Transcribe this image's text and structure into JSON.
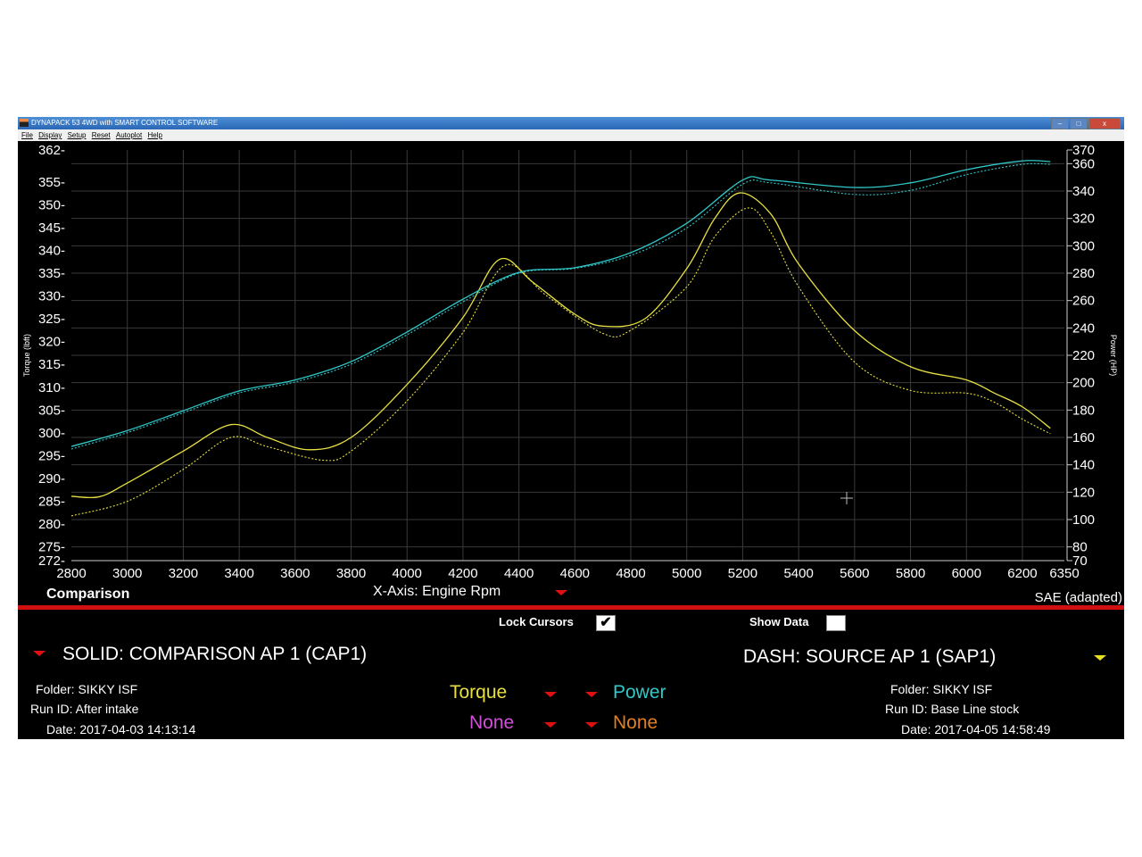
{
  "window": {
    "title": "DYNAPACK 53 4WD with SMART CONTROL SOFTWARE",
    "controls": [
      "–",
      "□",
      "x"
    ]
  },
  "menu": [
    "File",
    "Display",
    "Setup",
    "Reset",
    "Autoplot",
    "Help"
  ],
  "chart_data": {
    "type": "line",
    "xlabel": "X-Axis: Engine Rpm",
    "ylabel": "Torque (lbft)",
    "y2label": "Power (HP)",
    "xlim": [
      2800,
      6350
    ],
    "ylim": [
      272,
      362
    ],
    "y2lim": [
      70,
      370
    ],
    "x_ticks": [
      2800,
      3000,
      3200,
      3400,
      3600,
      3800,
      4000,
      4200,
      4400,
      4600,
      4800,
      5000,
      5200,
      5400,
      5600,
      5800,
      6000,
      6200,
      6350
    ],
    "y_ticks": [
      362,
      355,
      350,
      345,
      340,
      335,
      330,
      325,
      320,
      315,
      310,
      305,
      300,
      295,
      290,
      285,
      280,
      275,
      272
    ],
    "y2_ticks": [
      370,
      360,
      340,
      320,
      300,
      280,
      260,
      240,
      220,
      200,
      180,
      160,
      140,
      120,
      100,
      80,
      70
    ],
    "grid": true,
    "colors": {
      "torque": "#e8e040",
      "power": "#30c8c8"
    },
    "series": [
      {
        "name": "Torque",
        "style": "solid",
        "axis": "left",
        "x": [
          2800,
          2900,
          3000,
          3200,
          3370,
          3500,
          3650,
          3800,
          4000,
          4200,
          4330,
          4450,
          4600,
          4700,
          4850,
          5000,
          5100,
          5190,
          5300,
          5400,
          5600,
          5800,
          6000,
          6100,
          6200,
          6300
        ],
        "y": [
          286.1,
          286,
          289,
          296,
          301.8,
          299,
          296.3,
          299,
          310.6,
          325.3,
          338,
          333,
          326,
          323.4,
          325,
          336,
          347,
          352.6,
          348,
          337,
          322.4,
          314.5,
          311.6,
          308.7,
          305.7,
          301
        ]
      },
      {
        "name": "Torque",
        "style": "dash",
        "axis": "left",
        "x": [
          2800,
          3000,
          3200,
          3370,
          3500,
          3700,
          3800,
          4000,
          4200,
          4350,
          4500,
          4700,
          4800,
          5000,
          5100,
          5220,
          5300,
          5400,
          5600,
          5800,
          6000,
          6100,
          6200,
          6300
        ],
        "y": [
          281.8,
          285,
          292,
          299,
          297,
          294,
          296,
          307,
          322,
          336.7,
          330,
          321.8,
          322.5,
          332,
          343,
          349.3,
          344,
          332,
          315.5,
          309.3,
          308.7,
          306.7,
          303,
          299.8
        ]
      },
      {
        "name": "Power",
        "style": "solid",
        "axis": "right",
        "x": [
          2800,
          3000,
          3200,
          3400,
          3600,
          3800,
          4000,
          4200,
          4400,
          4600,
          4800,
          5000,
          5200,
          5300,
          5600,
          5800,
          6000,
          6200,
          6300
        ],
        "y": [
          153.4,
          165,
          179.5,
          194,
          202,
          215.4,
          237,
          261,
          280.6,
          284,
          295,
          316.5,
          348,
          348,
          342.6,
          346,
          355.6,
          362,
          361.5
        ]
      },
      {
        "name": "Power",
        "style": "dash",
        "axis": "right",
        "x": [
          2800,
          3000,
          3200,
          3400,
          3600,
          3800,
          4000,
          4200,
          4400,
          4600,
          4800,
          5000,
          5200,
          5300,
          5600,
          5800,
          6000,
          6200,
          6300
        ],
        "y": [
          151.5,
          163.5,
          178,
          192.5,
          200.5,
          213.5,
          235,
          259,
          280,
          283.5,
          293,
          313,
          345,
          346,
          337.5,
          340.5,
          352,
          359.5,
          359.5
        ]
      }
    ]
  },
  "panel": {
    "mode": "Comparison",
    "x_axis": "X-Axis: Engine Rpm",
    "correction": "SAE (adapted)",
    "lock_cursors": {
      "label": "Lock Cursors",
      "checked": true,
      "mark": "✔"
    },
    "show_data": {
      "label": "Show Data",
      "checked": false
    },
    "solid": {
      "title": "SOLID: COMPARISON AP 1 (CAP1)",
      "folder_label": "Folder:",
      "folder": "SIKKY ISF",
      "run_label": "Run ID:",
      "run": "After intake",
      "date_label": "Date:",
      "date": "2017-04-03 14:13:14"
    },
    "dash": {
      "title": "DASH: SOURCE AP 1 (SAP1)",
      "folder_label": "Folder:",
      "folder": "SIKKY ISF",
      "run_label": "Run ID:",
      "run": "Base Line stock",
      "date_label": "Date:",
      "date": "2017-04-05 14:58:49"
    },
    "channels": [
      {
        "label": "Torque",
        "color": "#e8e040"
      },
      {
        "label": "Power",
        "color": "#30c8c8"
      },
      {
        "label": "None",
        "color": "#d050d8"
      },
      {
        "label": "None",
        "color": "#e08020"
      }
    ]
  }
}
